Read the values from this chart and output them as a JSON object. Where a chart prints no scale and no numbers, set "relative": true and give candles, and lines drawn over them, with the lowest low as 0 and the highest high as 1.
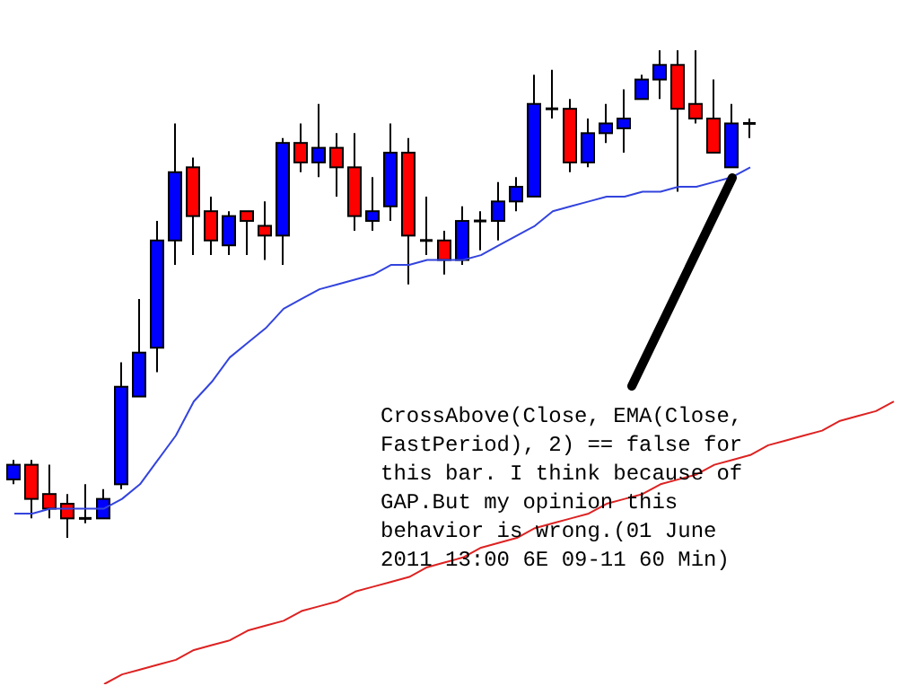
{
  "chart_data": {
    "type": "candlestick",
    "relative": true,
    "categories": [
      null,
      null,
      null,
      null,
      null,
      null,
      null,
      null,
      null,
      null,
      null,
      null,
      null,
      null,
      null,
      null,
      null,
      null,
      null,
      null,
      null,
      null,
      null,
      null,
      null,
      null,
      null,
      null,
      null,
      null,
      null,
      null,
      null,
      null,
      null,
      null,
      null,
      null,
      null,
      null,
      null,
      null,
      null,
      null,
      null,
      null,
      null,
      null,
      null,
      null
    ],
    "ohlc": [
      [
        0.12,
        0.16,
        0.11,
        0.15
      ],
      [
        0.15,
        0.16,
        0.04,
        0.08
      ],
      [
        0.09,
        0.15,
        0.04,
        0.06
      ],
      [
        0.07,
        0.09,
        0.0,
        0.04
      ],
      [
        0.04,
        0.11,
        0.03,
        0.04
      ],
      [
        0.04,
        0.1,
        0.04,
        0.08
      ],
      [
        0.11,
        0.36,
        0.1,
        0.31
      ],
      [
        0.29,
        0.49,
        0.29,
        0.38
      ],
      [
        0.39,
        0.65,
        0.34,
        0.61
      ],
      [
        0.61,
        0.85,
        0.56,
        0.75
      ],
      [
        0.76,
        0.78,
        0.58,
        0.66
      ],
      [
        0.67,
        0.7,
        0.58,
        0.61
      ],
      [
        0.6,
        0.67,
        0.58,
        0.66
      ],
      [
        0.67,
        0.67,
        0.58,
        0.65
      ],
      [
        0.64,
        0.69,
        0.57,
        0.62
      ],
      [
        0.62,
        0.82,
        0.56,
        0.81
      ],
      [
        0.81,
        0.85,
        0.75,
        0.77
      ],
      [
        0.77,
        0.89,
        0.74,
        0.8
      ],
      [
        0.8,
        0.83,
        0.7,
        0.76
      ],
      [
        0.76,
        0.83,
        0.63,
        0.66
      ],
      [
        0.65,
        0.74,
        0.63,
        0.67
      ],
      [
        0.68,
        0.85,
        0.65,
        0.79
      ],
      [
        0.79,
        0.82,
        0.52,
        0.62
      ],
      [
        0.61,
        0.7,
        0.58,
        0.61
      ],
      [
        0.61,
        0.63,
        0.54,
        0.57
      ],
      [
        0.57,
        0.68,
        0.56,
        0.65
      ],
      [
        0.65,
        0.67,
        0.59,
        0.65
      ],
      [
        0.65,
        0.73,
        0.61,
        0.69
      ],
      [
        0.69,
        0.74,
        0.67,
        0.72
      ],
      [
        0.7,
        0.95,
        0.7,
        0.89
      ],
      [
        0.88,
        0.96,
        0.86,
        0.88
      ],
      [
        0.88,
        0.9,
        0.75,
        0.77
      ],
      [
        0.77,
        0.86,
        0.76,
        0.83
      ],
      [
        0.83,
        0.89,
        0.81,
        0.85
      ],
      [
        0.84,
        0.92,
        0.79,
        0.86
      ],
      [
        0.9,
        0.95,
        0.9,
        0.94
      ],
      [
        0.94,
        1.0,
        0.9,
        0.97
      ],
      [
        0.97,
        1.0,
        0.71,
        0.88
      ],
      [
        0.89,
        1.0,
        0.85,
        0.86
      ],
      [
        0.86,
        0.94,
        0.79,
        0.79
      ],
      [
        0.76,
        0.89,
        0.76,
        0.85
      ],
      [
        0.85,
        0.86,
        0.82,
        0.85
      ],
      null,
      null,
      null,
      null,
      null,
      null,
      null,
      null
    ],
    "colors": [
      "#0000ff",
      "#ff0000",
      "#ff0000",
      "#ff0000",
      "#000000",
      "#0000ff",
      "#0000ff",
      "#0000ff",
      "#0000ff",
      "#0000ff",
      "#ff0000",
      "#ff0000",
      "#0000ff",
      "#ff0000",
      "#ff0000",
      "#0000ff",
      "#ff0000",
      "#0000ff",
      "#ff0000",
      "#ff0000",
      "#0000ff",
      "#0000ff",
      "#ff0000",
      "#000000",
      "#ff0000",
      "#0000ff",
      "#000000",
      "#0000ff",
      "#0000ff",
      "#0000ff",
      "#000000",
      "#ff0000",
      "#0000ff",
      "#0000ff",
      "#0000ff",
      "#0000ff",
      "#0000ff",
      "#ff0000",
      "#ff0000",
      "#ff0000",
      "#0000ff",
      "#000000",
      null,
      null,
      null,
      null,
      null,
      null,
      null,
      null
    ],
    "series": [
      {
        "type": "line",
        "color": "#3344dd",
        "values": [
          0.05,
          0.05,
          0.06,
          0.06,
          0.06,
          0.06,
          0.08,
          0.11,
          0.16,
          0.21,
          0.28,
          0.32,
          0.37,
          0.4,
          0.43,
          0.47,
          0.49,
          0.51,
          0.52,
          0.53,
          0.54,
          0.56,
          0.56,
          0.57,
          0.57,
          0.57,
          0.58,
          0.6,
          0.62,
          0.64,
          0.67,
          0.68,
          0.69,
          0.7,
          0.7,
          0.71,
          0.71,
          0.72,
          0.72,
          0.73,
          0.74,
          0.76,
          null,
          null,
          null,
          null,
          null,
          null,
          null,
          null
        ]
      },
      {
        "type": "line",
        "color": "#dd2222",
        "values": [
          null,
          null,
          null,
          null,
          null,
          -0.3,
          -0.28,
          -0.27,
          -0.26,
          -0.25,
          -0.23,
          -0.22,
          -0.21,
          -0.19,
          -0.18,
          -0.17,
          -0.15,
          -0.14,
          -0.13,
          -0.11,
          -0.1,
          -0.09,
          -0.08,
          -0.06,
          -0.05,
          -0.04,
          -0.02,
          -0.01,
          0.0,
          0.02,
          0.03,
          0.04,
          0.05,
          0.07,
          0.08,
          0.09,
          0.11,
          0.12,
          0.13,
          0.15,
          0.16,
          0.17,
          0.19,
          0.2,
          0.21,
          0.22,
          0.24,
          0.25,
          0.26,
          0.28
        ]
      }
    ],
    "annotations": [
      "CrossAbove(Close, EMA(Close, FastPeriod), 2) == false for this bar. I think because of GAP.But my opinion this behavior is wrong.(01 June 2011 13:00 6E 09-11 60 Min)"
    ]
  }
}
